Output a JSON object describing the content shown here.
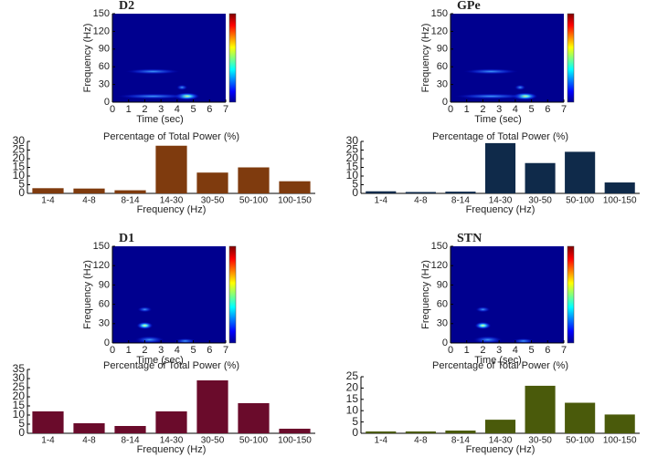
{
  "chart_data": [
    {
      "type": "spectrogram",
      "title": "D2",
      "ylabel": "Frequency (Hz)",
      "xlabel": "Time (sec)",
      "xlim": [
        0,
        7
      ],
      "xticks": [
        0,
        1,
        2,
        3,
        4,
        5,
        6,
        7
      ],
      "ylim": [
        0,
        150
      ],
      "yticks": [
        0,
        30,
        60,
        90,
        120,
        150
      ]
    },
    {
      "type": "bar",
      "title": "Percentage of Total Power (%)",
      "xlabel": "Frequency (Hz)",
      "categories": [
        "1-4",
        "4-8",
        "8-14",
        "14-30",
        "30-50",
        "50-100",
        "100-150"
      ],
      "values": [
        3,
        2.8,
        1.8,
        27.5,
        12,
        15,
        7
      ],
      "color": "#7f3b0e",
      "ylim": [
        0,
        30
      ],
      "yticks": [
        0,
        5,
        10,
        15,
        20,
        25,
        30
      ]
    },
    {
      "type": "spectrogram",
      "title": "GPe",
      "ylabel": "Frequency (Hz)",
      "xlabel": "Time (sec)",
      "xlim": [
        0,
        7
      ],
      "xticks": [
        0,
        1,
        2,
        3,
        4,
        5,
        6,
        7
      ],
      "ylim": [
        0,
        150
      ],
      "yticks": [
        0,
        30,
        60,
        90,
        120,
        150
      ]
    },
    {
      "type": "bar",
      "title": "Percentage of Total Power (%)",
      "xlabel": "Frequency (Hz)",
      "categories": [
        "1-4",
        "4-8",
        "8-14",
        "14-30",
        "30-50",
        "50-100",
        "100-150"
      ],
      "values": [
        1.2,
        0.8,
        1,
        29,
        17.5,
        24,
        6.3
      ],
      "color": "#0f2a4a",
      "ylim": [
        0,
        30
      ],
      "yticks": [
        0,
        5,
        10,
        15,
        20,
        25,
        30
      ]
    },
    {
      "type": "spectrogram",
      "title": "D1",
      "ylabel": "Frequency (Hz)",
      "xlabel": "Time (sec)",
      "xlim": [
        0,
        7
      ],
      "xticks": [
        0,
        1,
        2,
        3,
        4,
        5,
        6,
        7
      ],
      "ylim": [
        0,
        150
      ],
      "yticks": [
        0,
        30,
        60,
        90,
        120,
        150
      ]
    },
    {
      "type": "bar",
      "title": "Percentage of Total Power (%)",
      "xlabel": "Frequency (Hz)",
      "categories": [
        "1-4",
        "4-8",
        "8-14",
        "14-30",
        "30-50",
        "50-100",
        "100-150"
      ],
      "values": [
        12,
        5.5,
        4,
        12,
        29,
        16.5,
        2.5
      ],
      "color": "#6a0b2b",
      "ylim": [
        0,
        35
      ],
      "yticks": [
        0,
        5,
        10,
        15,
        20,
        25,
        30,
        35
      ]
    },
    {
      "type": "spectrogram",
      "title": "STN",
      "ylabel": "Frequency (Hz)",
      "xlabel": "Time (sec)",
      "xlim": [
        0,
        7
      ],
      "xticks": [
        0,
        1,
        2,
        3,
        4,
        5,
        6,
        7
      ],
      "ylim": [
        0,
        150
      ],
      "yticks": [
        0,
        30,
        60,
        90,
        120,
        150
      ]
    },
    {
      "type": "bar",
      "title": "Percentage of Total Power (%)",
      "xlabel": "Frequency (Hz)",
      "categories": [
        "1-4",
        "4-8",
        "8-14",
        "14-30",
        "30-50",
        "50-100",
        "100-150"
      ],
      "values": [
        0.8,
        0.8,
        1.2,
        6,
        21,
        13.5,
        8.3
      ],
      "color": "#4a5a0b",
      "ylim": [
        0,
        25
      ],
      "yticks": [
        0,
        5,
        10,
        15,
        20,
        25
      ]
    }
  ]
}
